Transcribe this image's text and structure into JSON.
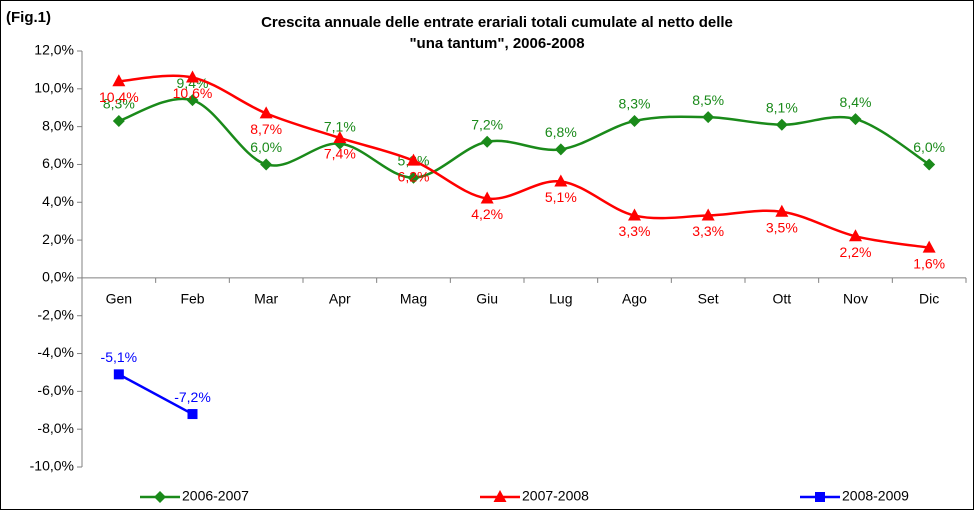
{
  "chart_data": {
    "type": "line",
    "annotation": "(Fig.1)",
    "title": [
      "Crescita annuale delle entrate erariali totali cumulate al netto delle",
      "\"una tantum\", 2006-2008"
    ],
    "categories": [
      "Gen",
      "Feb",
      "Mar",
      "Apr",
      "Mag",
      "Giu",
      "Lug",
      "Ago",
      "Set",
      "Ott",
      "Nov",
      "Dic"
    ],
    "series": [
      {
        "name": "2006-2007",
        "color": "#1a8a1a",
        "marker": "diamond",
        "smooth": true,
        "label_side": "above",
        "values": [
          8.3,
          9.4,
          6.0,
          7.1,
          5.3,
          7.2,
          6.8,
          8.3,
          8.5,
          8.1,
          8.4,
          6.0
        ],
        "value_labels": [
          "8,3%",
          "9,4%",
          "6,0%",
          "7,1%",
          "5,3%",
          "7,2%",
          "6,8%",
          "8,3%",
          "8,5%",
          "8,1%",
          "8,4%",
          "6,0%"
        ]
      },
      {
        "name": "2007-2008",
        "color": "#ff0000",
        "marker": "triangle",
        "smooth": true,
        "label_side": "below",
        "values": [
          10.4,
          10.6,
          8.7,
          7.4,
          6.2,
          4.2,
          5.1,
          3.3,
          3.3,
          3.5,
          2.2,
          1.6
        ],
        "value_labels": [
          "10,4%",
          "10,6%",
          "8,7%",
          "7,4%",
          "6,2%",
          "4,2%",
          "5,1%",
          "3,3%",
          "3,3%",
          "3,5%",
          "2,2%",
          "1,6%"
        ]
      },
      {
        "name": "2008-2009",
        "color": "#0000ff",
        "marker": "square",
        "smooth": false,
        "label_side": "above",
        "values": [
          -5.1,
          -7.2,
          null,
          null,
          null,
          null,
          null,
          null,
          null,
          null,
          null,
          null
        ],
        "value_labels": [
          "-5,1%",
          "-7,2%",
          null,
          null,
          null,
          null,
          null,
          null,
          null,
          null,
          null,
          null
        ]
      }
    ],
    "ylim": [
      -10,
      12
    ],
    "yticks": [
      {
        "value": -10,
        "label": "-10,0%"
      },
      {
        "value": -8,
        "label": "-8,0%"
      },
      {
        "value": -6,
        "label": "-6,0%"
      },
      {
        "value": -4,
        "label": "-4,0%"
      },
      {
        "value": -2,
        "label": "-2,0%"
      },
      {
        "value": 0,
        "label": "0,0%"
      },
      {
        "value": 2,
        "label": "2,0%"
      },
      {
        "value": 4,
        "label": "4,0%"
      },
      {
        "value": 6,
        "label": "6,0%"
      },
      {
        "value": 8,
        "label": "8,0%"
      },
      {
        "value": 10,
        "label": "10,0%"
      },
      {
        "value": 12,
        "label": "12,0%"
      }
    ],
    "grid": false,
    "legend": "bottom"
  }
}
